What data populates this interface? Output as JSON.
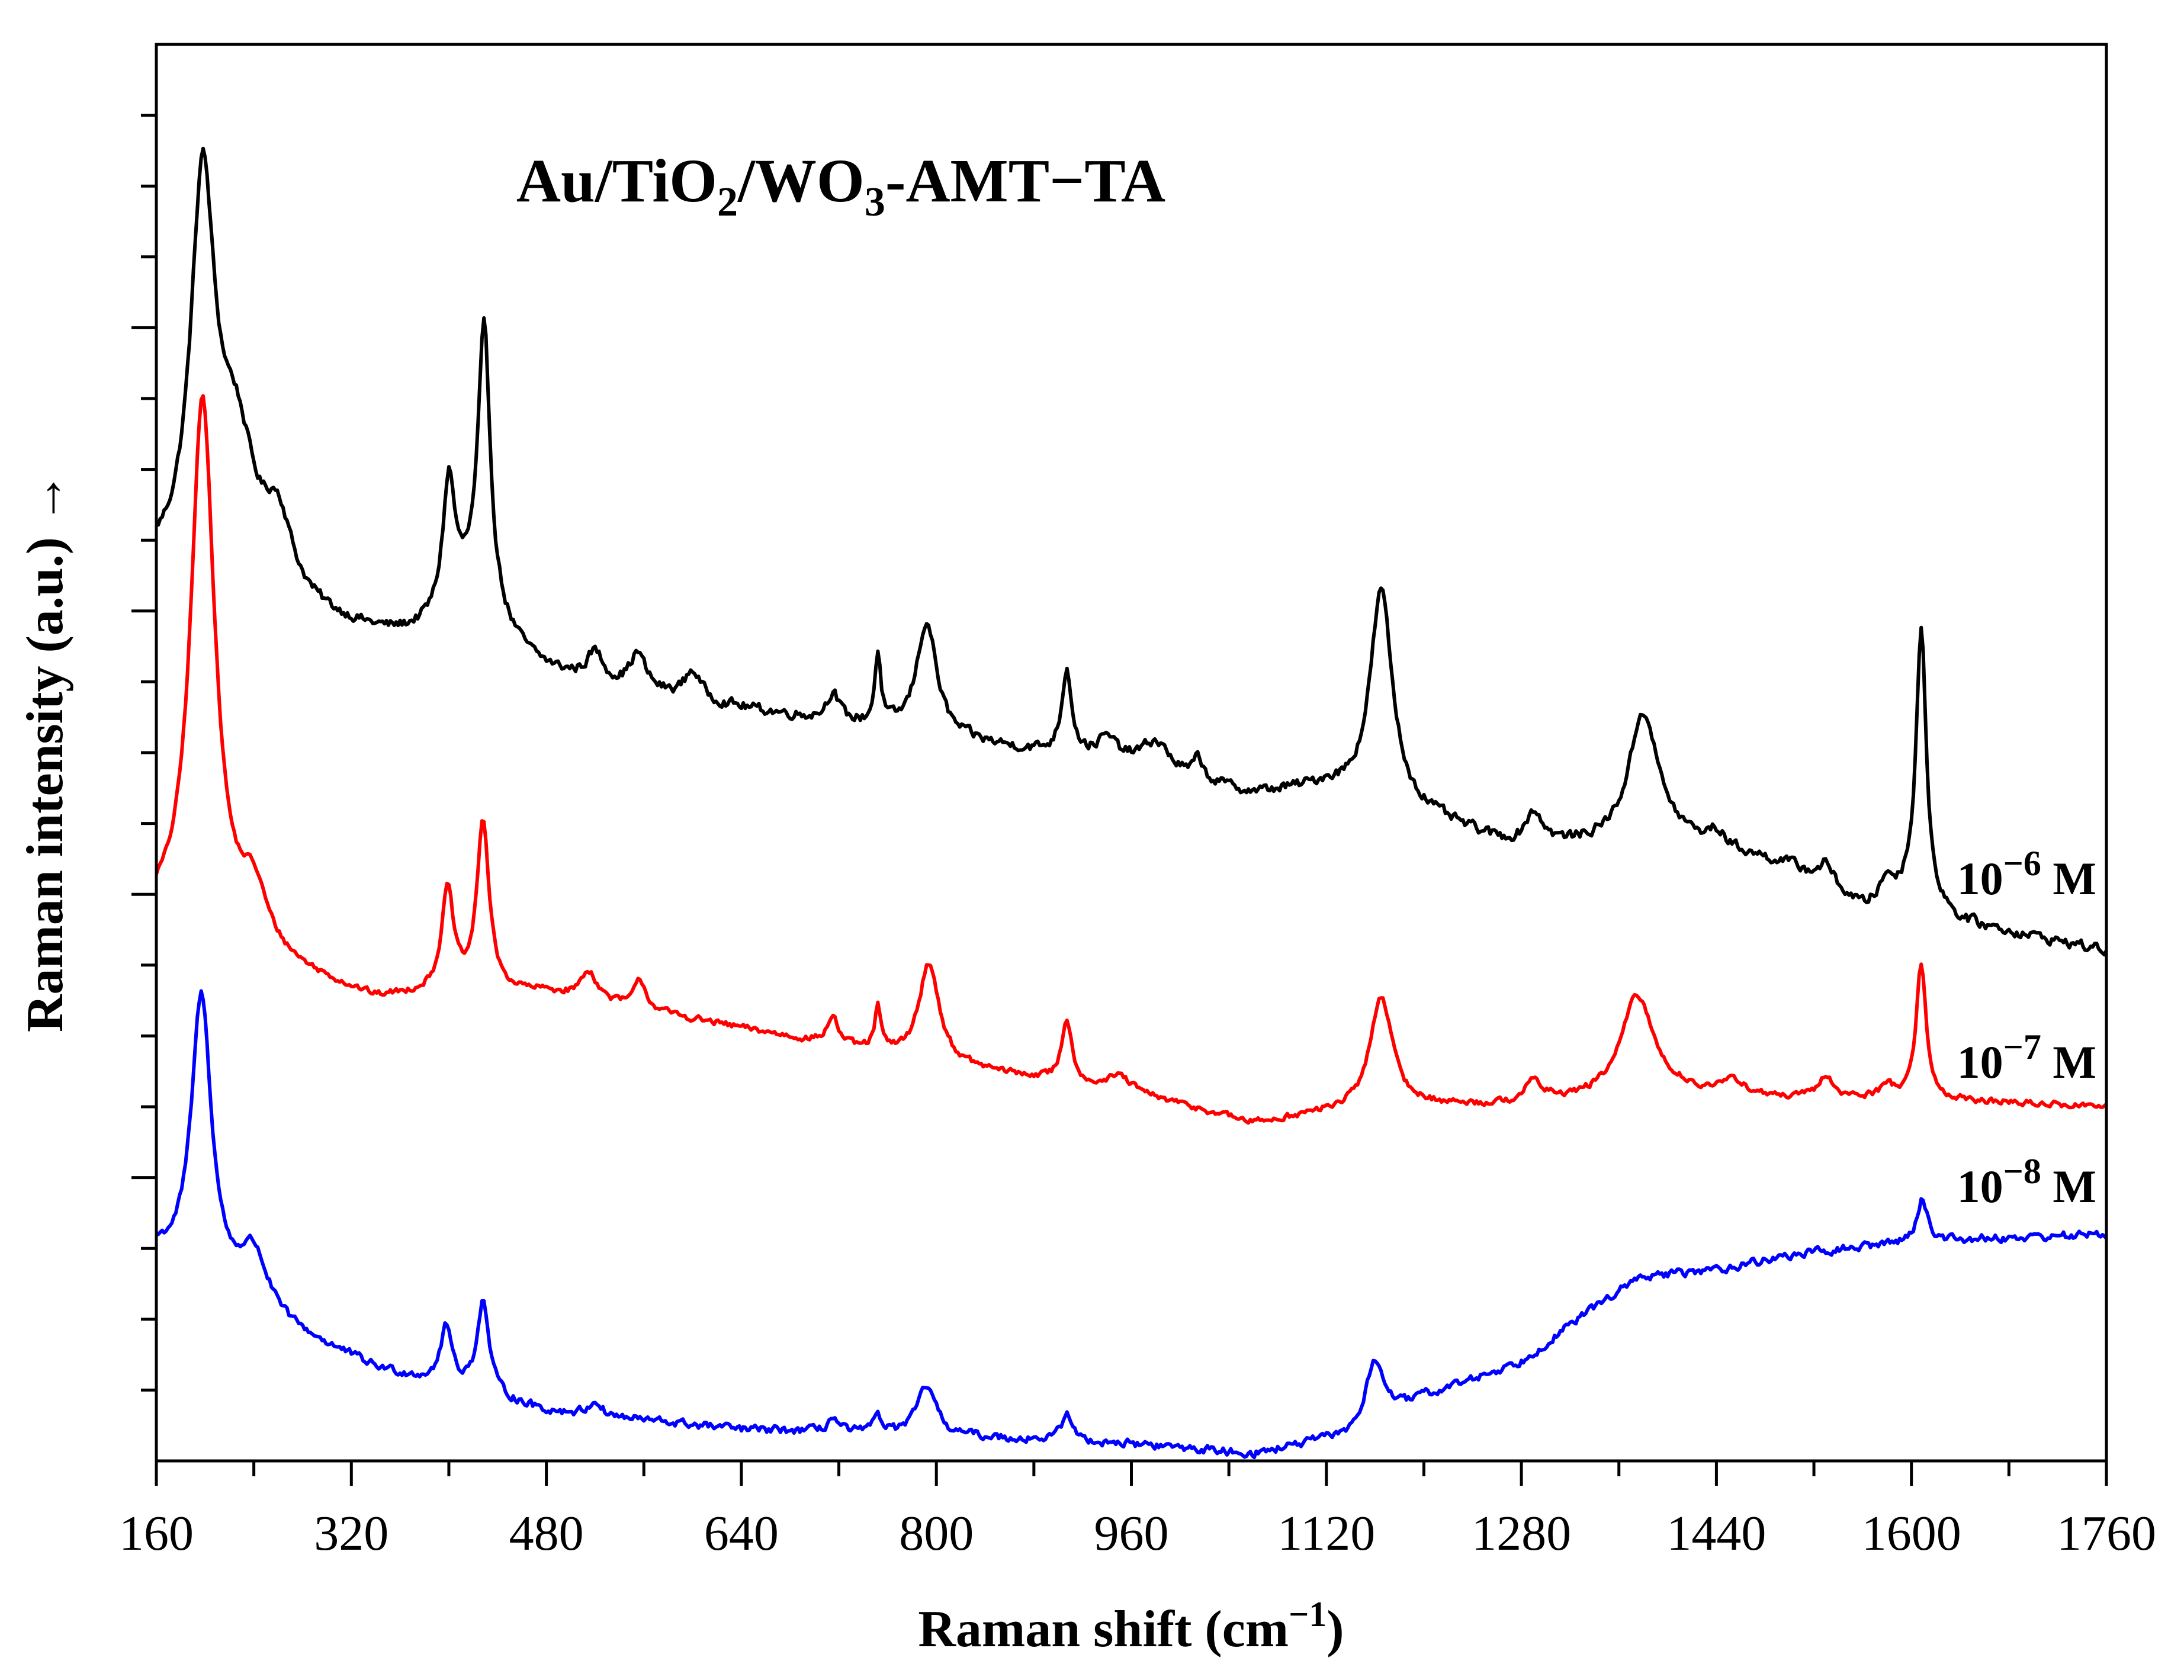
{
  "chart_data": {
    "type": "line",
    "title": {
      "base": "Au/TiO",
      "sub1": "2",
      "mid": "/WO",
      "sub2": "3",
      "rest": "-AMT−TA"
    },
    "xlabel": {
      "base": "Raman shift (cm",
      "sup": "−1",
      "end": ")"
    },
    "ylabel": "Raman intensity (a.u.) →",
    "xlim": [
      160,
      1760
    ],
    "ylim": [
      0,
      100
    ],
    "xticks": [
      "160",
      "320",
      "480",
      "640",
      "800",
      "960",
      "1120",
      "1280",
      "1440",
      "1600",
      "1760"
    ],
    "grid": false,
    "series": [
      {
        "name": "10⁻⁶ M",
        "label": {
          "base": "10",
          "sup": "−6",
          "unit": " M"
        },
        "color": "#000000",
        "baseline": [
          [
            160,
            62.5
          ],
          [
            250,
            60
          ],
          [
            350,
            57.5
          ],
          [
            480,
            55
          ],
          [
            640,
            53
          ],
          [
            800,
            51
          ],
          [
            960,
            49
          ],
          [
            1060,
            47
          ],
          [
            1120,
            47.5
          ],
          [
            1200,
            45.5
          ],
          [
            1280,
            43
          ],
          [
            1400,
            44
          ],
          [
            1500,
            42
          ],
          [
            1560,
            39
          ],
          [
            1600,
            40
          ],
          [
            1640,
            38
          ],
          [
            1760,
            36
          ]
        ],
        "peaks": [
          [
            198,
            27,
            12
          ],
          [
            225,
            10,
            20
          ],
          [
            260,
            5,
            14
          ],
          [
            400,
            9,
            6
          ],
          [
            429,
            19,
            6
          ],
          [
            420,
            5,
            30
          ],
          [
            520,
            2,
            8
          ],
          [
            555,
            2.5,
            8
          ],
          [
            600,
            2,
            8
          ],
          [
            715,
            2,
            6
          ],
          [
            752,
            5,
            3
          ],
          [
            792,
            8,
            10
          ],
          [
            907,
            6,
            5
          ],
          [
            940,
            1.5,
            10
          ],
          [
            980,
            2,
            14
          ],
          [
            1015,
            1.5,
            4
          ],
          [
            1165,
            15,
            11
          ],
          [
            1290,
            2.5,
            10
          ],
          [
            1380,
            9,
            14
          ],
          [
            1440,
            1,
            8
          ],
          [
            1530,
            1.5,
            8
          ],
          [
            1580,
            1.5,
            6
          ],
          [
            1608,
            19,
            5
          ]
        ],
        "noise": 0.55
      },
      {
        "name": "10⁻⁷ M",
        "label": {
          "base": "10",
          "sup": "−7",
          "unit": " M"
        },
        "color": "#ff0000",
        "baseline": [
          [
            160,
            38
          ],
          [
            250,
            35
          ],
          [
            340,
            32.5
          ],
          [
            400,
            33
          ],
          [
            480,
            33
          ],
          [
            640,
            30.5
          ],
          [
            800,
            28
          ],
          [
            960,
            26
          ],
          [
            1060,
            23.8
          ],
          [
            1120,
            24.5
          ],
          [
            1200,
            25
          ],
          [
            1280,
            25
          ],
          [
            1400,
            26
          ],
          [
            1500,
            25.5
          ],
          [
            1600,
            25.5
          ],
          [
            1760,
            25
          ]
        ],
        "peaks": [
          [
            198,
            38,
            12
          ],
          [
            240,
            4,
            14
          ],
          [
            399,
            7,
            6
          ],
          [
            428,
            12,
            6
          ],
          [
            515,
            2,
            8
          ],
          [
            557,
            2,
            6
          ],
          [
            715,
            2,
            5
          ],
          [
            752,
            3,
            3
          ],
          [
            794,
            7,
            10
          ],
          [
            907,
            4.5,
            5
          ],
          [
            950,
            1,
            10
          ],
          [
            1165,
            8,
            11
          ],
          [
            1290,
            1.5,
            10
          ],
          [
            1375,
            7,
            16
          ],
          [
            1455,
            1,
            10
          ],
          [
            1530,
            1.5,
            8
          ],
          [
            1580,
            1,
            6
          ],
          [
            1608,
            9.5,
            5
          ]
        ],
        "noise": 0.35
      },
      {
        "name": "10⁻⁸ M",
        "label": {
          "base": "10",
          "sup": "−8",
          "unit": " M"
        },
        "color": "#0000ff",
        "baseline": [
          [
            160,
            14.5
          ],
          [
            260,
            9.5
          ],
          [
            340,
            6.5
          ],
          [
            480,
            3.5
          ],
          [
            640,
            2.2
          ],
          [
            800,
            1.8
          ],
          [
            960,
            1.2
          ],
          [
            1060,
            0.5
          ],
          [
            1140,
            1.8
          ],
          [
            1200,
            4.5
          ],
          [
            1280,
            7
          ],
          [
            1350,
            11.5
          ],
          [
            1380,
            13
          ],
          [
            1440,
            13.5
          ],
          [
            1500,
            14.5
          ],
          [
            1600,
            15.5
          ],
          [
            1760,
            16
          ]
        ],
        "peaks": [
          [
            197,
            20,
            10
          ],
          [
            240,
            4,
            14
          ],
          [
            398,
            4,
            6
          ],
          [
            428,
            6.5,
            6
          ],
          [
            520,
            1,
            6
          ],
          [
            715,
            1,
            5
          ],
          [
            752,
            1.5,
            3
          ],
          [
            792,
            3.5,
            9
          ],
          [
            907,
            2,
            5
          ],
          [
            1160,
            4.5,
            9
          ],
          [
            1609,
            3,
            5
          ]
        ],
        "noise": 0.45
      }
    ]
  }
}
